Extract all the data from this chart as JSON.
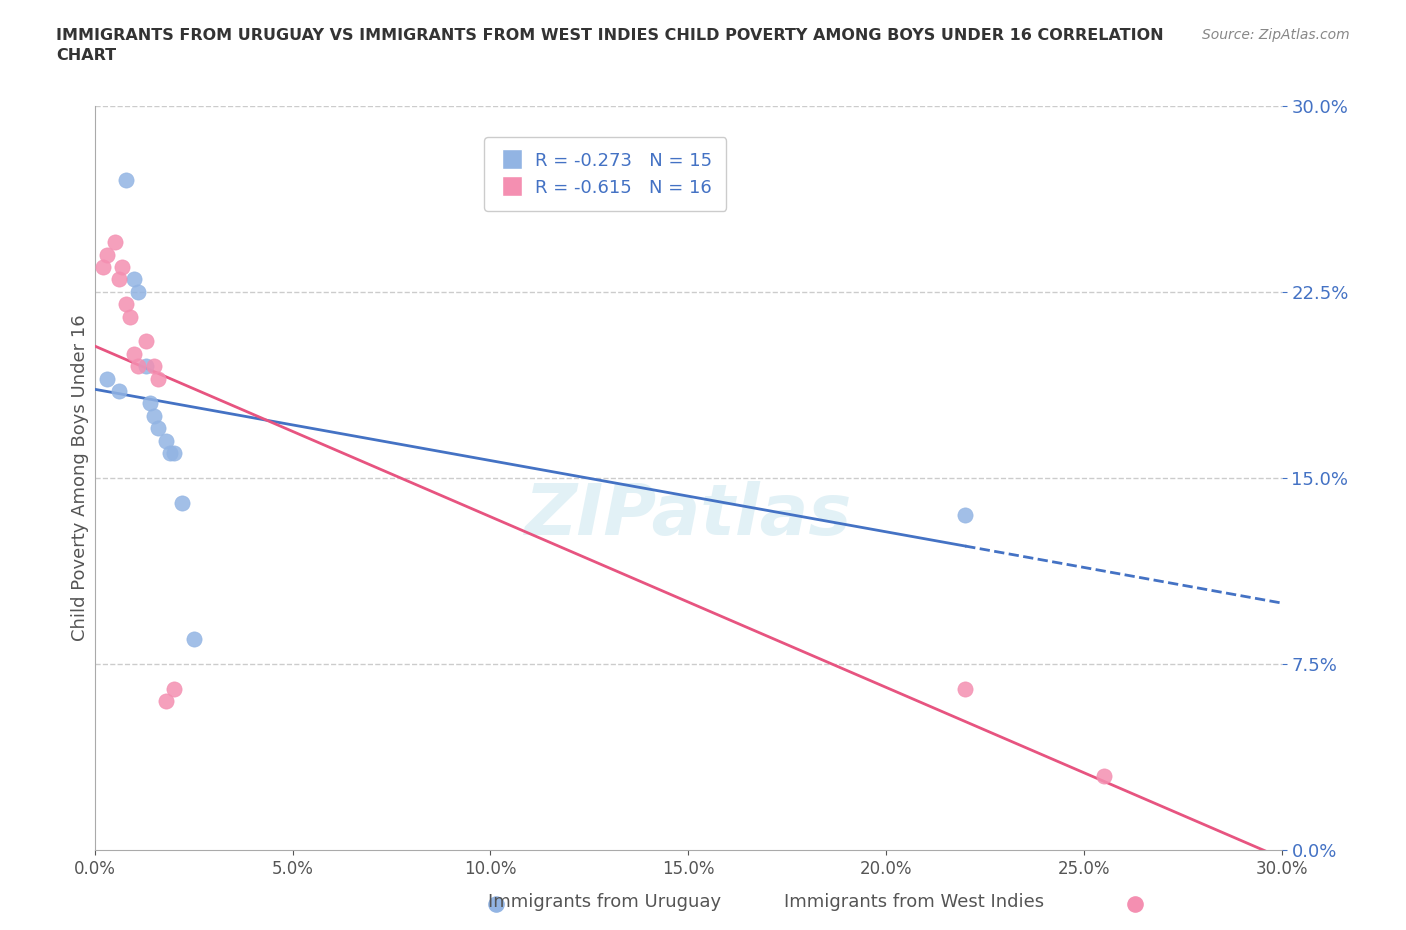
{
  "title": "IMMIGRANTS FROM URUGUAY VS IMMIGRANTS FROM WEST INDIES CHILD POVERTY AMONG BOYS UNDER 16 CORRELATION\nCHART",
  "source": "Source: ZipAtlas.com",
  "ylabel": "Child Poverty Among Boys Under 16",
  "legend_label1": "Immigrants from Uruguay",
  "legend_label2": "Immigrants from West Indies",
  "R1": -0.273,
  "N1": 15,
  "R2": -0.615,
  "N2": 16,
  "color1": "#92b4e3",
  "color2": "#f48fb1",
  "color1_dark": "#4472c4",
  "color2_dark": "#e75480",
  "xmin": 0.0,
  "xmax": 0.3,
  "ymin": 0.0,
  "ymax": 0.3,
  "yticks": [
    0.0,
    0.075,
    0.15,
    0.225,
    0.3
  ],
  "xticks": [
    0.0,
    0.05,
    0.1,
    0.15,
    0.2,
    0.25,
    0.3
  ],
  "grid_color": "#cccccc",
  "background_color": "#ffffff",
  "watermark": "ZIPatlas"
}
